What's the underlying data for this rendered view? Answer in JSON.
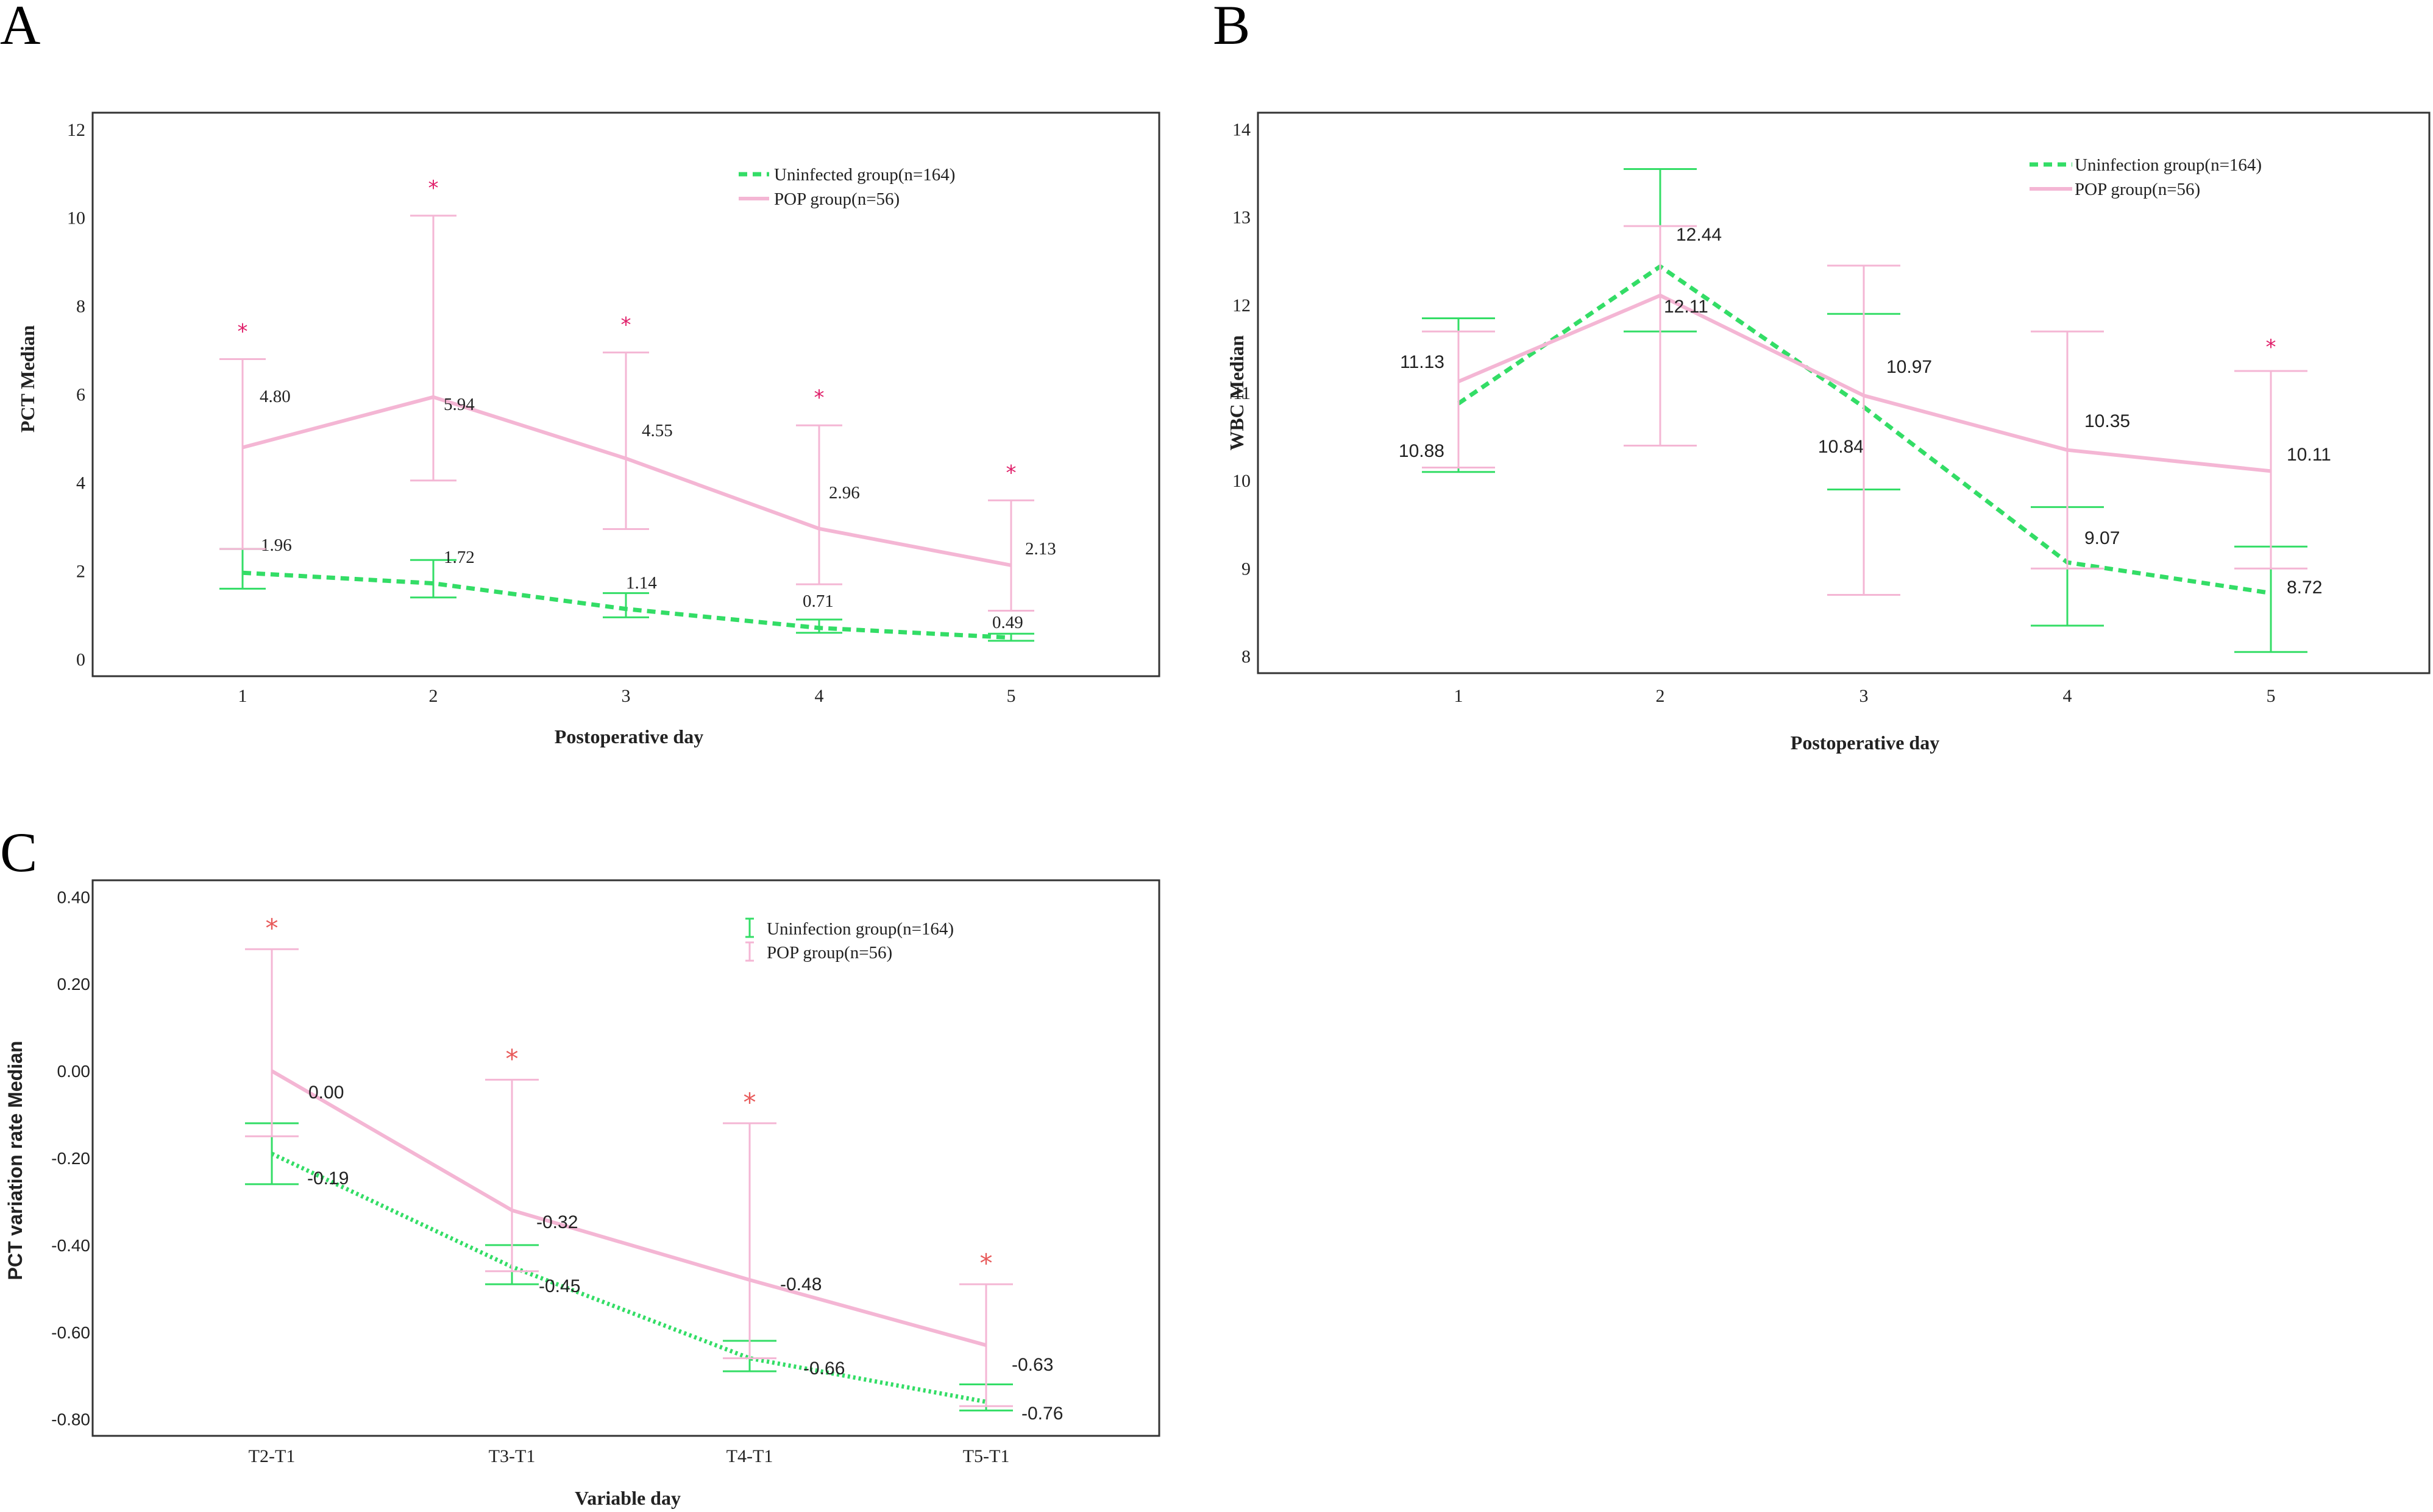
{
  "figure": {
    "colors": {
      "uninfected": "#33dd66",
      "pop": "#f4b6d4",
      "star_ab": "#e0206a",
      "star_c": "#e85a5a",
      "frame": "#333333"
    },
    "star_symbol": "*"
  },
  "chart_data": [
    {
      "id": "A",
      "panel_label": "A",
      "type": "line",
      "title": "",
      "xlabel": "Postoperative day",
      "ylabel": "PCT  Median",
      "categories": [
        "1",
        "2",
        "3",
        "4",
        "5"
      ],
      "ylim": [
        0,
        12
      ],
      "yticks": [
        "0",
        "2",
        "4",
        "6",
        "8",
        "10",
        "12"
      ],
      "series": [
        {
          "name": "Uninfected group(n=164)",
          "style": "dashed",
          "values": [
            1.96,
            1.72,
            1.14,
            0.71,
            0.49
          ],
          "labels": [
            "1.96",
            "1.72",
            "1.14",
            "0.71",
            "0.49"
          ],
          "err_low": [
            1.6,
            1.4,
            0.95,
            0.6,
            0.42
          ],
          "err_high": [
            2.5,
            2.25,
            1.5,
            0.9,
            0.58
          ]
        },
        {
          "name": "POP group(n=56)",
          "style": "solid",
          "values": [
            4.8,
            5.94,
            4.55,
            2.96,
            2.13
          ],
          "labels": [
            "4.80",
            "5.94",
            "4.55",
            "2.96",
            "2.13"
          ],
          "err_low": [
            2.5,
            4.05,
            2.95,
            1.7,
            1.1
          ],
          "err_high": [
            6.8,
            10.05,
            6.95,
            5.3,
            3.6
          ]
        }
      ],
      "significant": [
        true,
        true,
        true,
        true,
        true
      ],
      "legend_position": "top-right"
    },
    {
      "id": "B",
      "panel_label": "B",
      "type": "line",
      "title": "",
      "xlabel": "Postoperative day",
      "ylabel": "WBC  Median",
      "categories": [
        "1",
        "2",
        "3",
        "4",
        "5"
      ],
      "ylim": [
        8,
        14
      ],
      "yticks": [
        "8",
        "9",
        "10",
        "11",
        "12",
        "13",
        "14"
      ],
      "series": [
        {
          "name": "Uninfection group(n=164)",
          "style": "dashed",
          "values": [
            10.88,
            12.44,
            10.84,
            9.07,
            8.72
          ],
          "labels": [
            "10.88",
            "12.44",
            "10.84",
            "9.07",
            "8.72"
          ],
          "err_low": [
            10.1,
            11.7,
            9.9,
            8.35,
            8.05
          ],
          "err_high": [
            11.85,
            13.55,
            11.9,
            9.7,
            9.25
          ]
        },
        {
          "name": "POP group(n=56)",
          "style": "solid",
          "values": [
            11.13,
            12.11,
            10.97,
            10.35,
            10.11
          ],
          "labels": [
            "11.13",
            "12.11",
            "10.97",
            "10.35",
            "10.11"
          ],
          "err_low": [
            10.15,
            10.4,
            8.7,
            9.0,
            9.0
          ],
          "err_high": [
            11.7,
            12.9,
            12.45,
            11.7,
            11.25
          ]
        }
      ],
      "significant": [
        false,
        false,
        false,
        false,
        true
      ],
      "legend_position": "top-right"
    },
    {
      "id": "C",
      "panel_label": "C",
      "type": "line",
      "title": "",
      "xlabel": "Variable day",
      "ylabel": "PCT variation rate Median",
      "categories": [
        "T2-T1",
        "T3-T1",
        "T4-T1",
        "T5-T1"
      ],
      "ylim": [
        -0.8,
        0.4
      ],
      "yticks": [
        "-0.80",
        "-0.60",
        "-0.40",
        "-0.20",
        "0.00",
        "0.20",
        "0.40"
      ],
      "series": [
        {
          "name": "Uninfection group(n=164)",
          "style": "dotted",
          "values": [
            -0.19,
            -0.45,
            -0.66,
            -0.76
          ],
          "labels": [
            "-0.19",
            "-0.45",
            "-0.66",
            "-0.76"
          ],
          "err_low": [
            -0.26,
            -0.49,
            -0.69,
            -0.78
          ],
          "err_high": [
            -0.12,
            -0.4,
            -0.62,
            -0.72
          ]
        },
        {
          "name": "POP group(n=56)",
          "style": "solid",
          "values": [
            0.0,
            -0.32,
            -0.48,
            -0.63
          ],
          "labels": [
            "0.00",
            "-0.32",
            "-0.48",
            "-0.63"
          ],
          "err_low": [
            -0.15,
            -0.46,
            -0.66,
            -0.77
          ],
          "err_high": [
            0.28,
            -0.02,
            -0.12,
            -0.49
          ]
        }
      ],
      "significant": [
        true,
        true,
        true,
        true
      ],
      "legend_position": "top-right"
    }
  ]
}
